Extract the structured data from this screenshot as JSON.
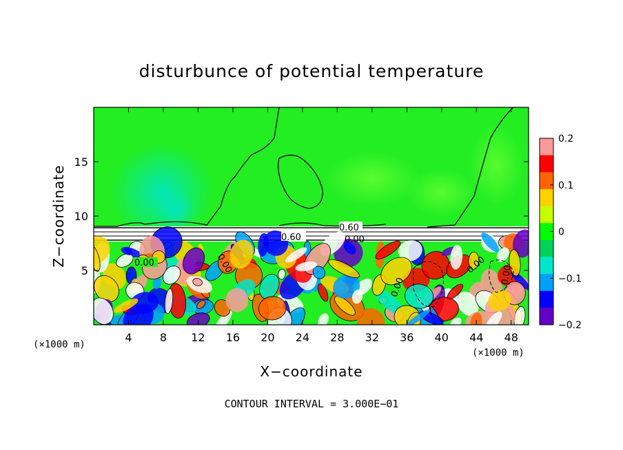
{
  "chart_data": {
    "type": "heatmap",
    "title": "disturbunce of potential temperature",
    "xlabel": "X−coordinate",
    "ylabel": "Z−coordinate",
    "x_unit": "(×1000 m)",
    "x_unit_right": "(×1000 m)",
    "xlim": [
      0,
      50
    ],
    "ylim": [
      0,
      20
    ],
    "x_ticks": [
      4,
      8,
      12,
      16,
      20,
      24,
      28,
      32,
      36,
      40,
      44,
      48
    ],
    "y_ticks": [
      5,
      10,
      15
    ],
    "colorbar": {
      "range": [
        -0.2,
        0.2
      ],
      "ticks": [
        0.2,
        0.1,
        0,
        -0.1,
        -0.2
      ],
      "tick_labels": [
        "0.2",
        "0.1",
        "0",
        "−0.1",
        "−0.2"
      ],
      "colors": [
        "#ff9a9a",
        "#ff0000",
        "#ff6400",
        "#ffd200",
        "#c8ff00",
        "#00ff00",
        "#00d25a",
        "#00e6c8",
        "#00a0ff",
        "#0000ff",
        "#6400c8"
      ]
    },
    "contour_labels": [
      "0.00",
      "0.60",
      "0.60",
      "0.00",
      "0.00",
      "0.00",
      "0.00",
      "0.00"
    ],
    "footer": "CONTOUR INTERVAL = 3.000E−01"
  }
}
